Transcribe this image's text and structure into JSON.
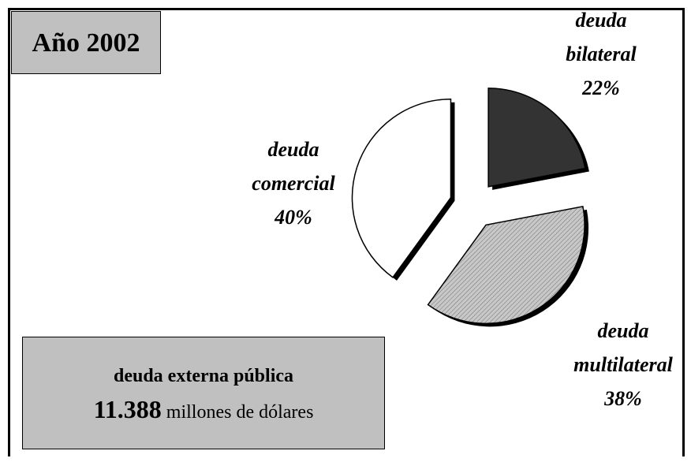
{
  "chart_data": {
    "type": "pie",
    "title": "Año 2002",
    "categories": [
      "deuda bilateral",
      "deuda multilateral",
      "deuda comercial"
    ],
    "values": [
      22,
      38,
      40
    ],
    "value_labels": [
      "22%",
      "38%",
      "40%"
    ],
    "colors": [
      "#333333",
      "#c8c8c8",
      "#ffffff"
    ],
    "annotation": {
      "title": "deuda externa pública",
      "amount": "11.388",
      "unit": "millones de dólares"
    }
  }
}
